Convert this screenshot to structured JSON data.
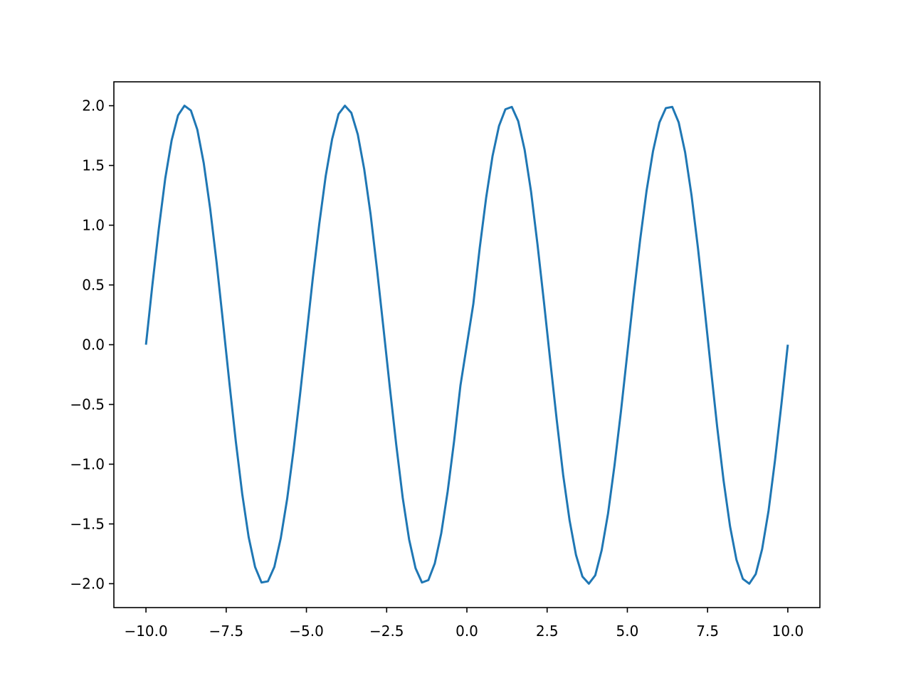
{
  "chart_data": {
    "type": "line",
    "title": "",
    "xlabel": "",
    "ylabel": "",
    "xlim": [
      -11.0,
      11.0
    ],
    "ylim": [
      -2.2,
      2.2
    ],
    "grid": false,
    "x_ticks": [
      -10.0,
      -7.5,
      -5.0,
      -2.5,
      0.0,
      2.5,
      5.0,
      7.5,
      10.0
    ],
    "x_tick_labels": [
      "−10.0",
      "−7.5",
      "−5.0",
      "−2.5",
      "0.0",
      "2.5",
      "5.0",
      "7.5",
      "10.0"
    ],
    "y_ticks": [
      -2.0,
      -1.5,
      -1.0,
      -0.5,
      0.0,
      0.5,
      1.0,
      1.5,
      2.0
    ],
    "y_tick_labels": [
      "−2.0",
      "−1.5",
      "−1.0",
      "−0.5",
      "0.0",
      "0.5",
      "1.0",
      "1.5",
      "2.0"
    ],
    "series": [
      {
        "color": "#1f77b4",
        "x": [
          -10.0,
          -9.8,
          -9.6,
          -9.4,
          -9.2,
          -9.0,
          -8.8,
          -8.6,
          -8.4,
          -8.2,
          -8.0,
          -7.8,
          -7.6,
          -7.4,
          -7.2,
          -7.0,
          -6.8,
          -6.6,
          -6.4,
          -6.2,
          -6.0,
          -5.8,
          -5.6,
          -5.4,
          -5.2,
          -5.0,
          -4.8,
          -4.6,
          -4.4,
          -4.2,
          -4.0,
          -3.8,
          -3.6,
          -3.4,
          -3.2,
          -3.0,
          -2.8,
          -2.6,
          -2.4,
          -2.2,
          -2.0,
          -1.8,
          -1.6,
          -1.4,
          -1.2,
          -1.0,
          -0.8,
          -0.6,
          -0.4,
          -0.2,
          0.0,
          0.2,
          0.4,
          0.6,
          0.8,
          1.0,
          1.2,
          1.4,
          1.6,
          1.8,
          2.0,
          2.2,
          2.4,
          2.6,
          2.8,
          3.0,
          3.2,
          3.4,
          3.6,
          3.8,
          4.0,
          4.2,
          4.4,
          4.6,
          4.8,
          5.0,
          5.2,
          5.4,
          5.6,
          5.8,
          6.0,
          6.2,
          6.4,
          6.6,
          6.8,
          7.0,
          7.2,
          7.4,
          7.6,
          7.8,
          8.0,
          8.2,
          8.4,
          8.6,
          8.8,
          9.0,
          9.2,
          9.4,
          9.6,
          9.8,
          10.0
        ],
        "y": [
          0.0,
          0.5,
          0.97,
          1.39,
          1.71,
          1.92,
          2.0,
          1.96,
          1.8,
          1.52,
          1.14,
          0.69,
          0.19,
          -0.32,
          -0.81,
          -1.25,
          -1.61,
          -1.86,
          -1.99,
          -1.98,
          -1.86,
          -1.62,
          -1.29,
          -0.88,
          -0.42,
          0.07,
          0.56,
          1.01,
          1.41,
          1.72,
          1.93,
          2.0,
          1.94,
          1.76,
          1.47,
          1.09,
          0.63,
          0.14,
          -0.36,
          -0.84,
          -1.28,
          -1.63,
          -1.87,
          -1.99,
          -1.97,
          -1.83,
          -1.58,
          -1.23,
          -0.81,
          -0.34,
          0.0,
          0.34,
          0.81,
          1.23,
          1.58,
          1.83,
          1.97,
          1.99,
          1.87,
          1.63,
          1.28,
          0.84,
          0.36,
          -0.14,
          -0.63,
          -1.09,
          -1.47,
          -1.76,
          -1.94,
          -2.0,
          -1.93,
          -1.72,
          -1.41,
          -1.01,
          -0.56,
          -0.07,
          0.42,
          0.88,
          1.29,
          1.62,
          1.86,
          1.98,
          1.99,
          1.86,
          1.61,
          1.25,
          0.81,
          0.32,
          -0.19,
          -0.69,
          -1.14,
          -1.52,
          -1.8,
          -1.96,
          -2.0,
          -1.92,
          -1.71,
          -1.39,
          -0.97,
          -0.5,
          0.0
        ]
      }
    ]
  }
}
